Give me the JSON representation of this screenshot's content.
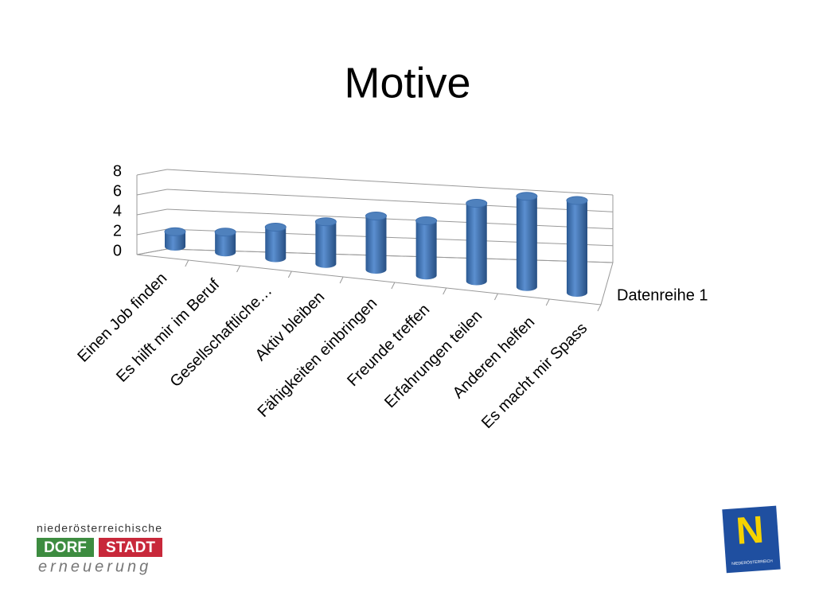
{
  "chart_data": {
    "type": "bar",
    "title": "Motive",
    "categories": [
      "Einen Job finden",
      "Es hilft mir im Beruf",
      "Gesellschaftliche…",
      "Aktiv bleiben",
      "Fähigkeiten einbringen",
      "Freunde treffen",
      "Erfahrungen teilen",
      "Anderen helfen",
      "Es macht mir Spass"
    ],
    "series": [
      {
        "name": "Datenreihe 1",
        "color": "#4f81bd",
        "values": [
          1.5,
          2,
          3,
          4,
          5,
          5,
          7,
          8,
          8
        ]
      }
    ],
    "ylim": [
      0,
      8
    ],
    "yticks": [
      0,
      2,
      4,
      6,
      8
    ],
    "grid": true,
    "legend": "right"
  },
  "logos": {
    "left": {
      "top": "niederösterreichische",
      "dorf": "DORF",
      "stadt": "STADT",
      "bottom": "erneuerung"
    },
    "right": {
      "letter": "N",
      "caption": "NIEDERÖSTERREICH"
    }
  }
}
